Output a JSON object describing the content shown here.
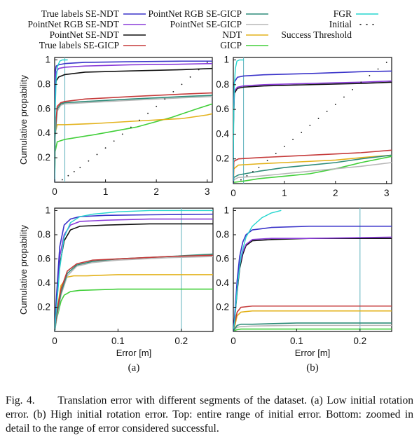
{
  "colors": {
    "true_labels_se_ndt": "#3a33c9",
    "pointnet_rgb_se_ndt": "#8a3bd8",
    "pointnet_se_ndt": "#111111",
    "true_labels_se_gicp": "#c53a3a",
    "pointnet_rgb_se_gicp": "#2f8c7a",
    "pointnet_se_gicp": "#b7b7b7",
    "ndt": "#e3b21b",
    "gicp": "#42cf3a",
    "fgr": "#26d6cf",
    "initial": "#111111",
    "success_threshold": "#6bb7c2"
  },
  "legend": {
    "entries": [
      {
        "key": "true_labels_se_ndt",
        "label": "True labels SE-NDT"
      },
      {
        "key": "pointnet_rgb_se_ndt",
        "label": "PointNet RGB SE-NDT"
      },
      {
        "key": "pointnet_se_ndt",
        "label": "PointNet SE-NDT"
      },
      {
        "key": "true_labels_se_gicp",
        "label": "True labels SE-GICP"
      },
      {
        "key": "pointnet_rgb_se_gicp",
        "label": "PointNet RGB SE-GICP"
      },
      {
        "key": "pointnet_se_gicp",
        "label": "PointNet SE-GICP"
      },
      {
        "key": "ndt",
        "label": "NDT"
      },
      {
        "key": "gicp",
        "label": "GICP"
      },
      {
        "key": "fgr",
        "label": "FGR"
      },
      {
        "key": "initial",
        "label": "Initial"
      },
      {
        "key": "success_threshold",
        "label": "Success Threshold"
      }
    ]
  },
  "caption": {
    "prefix": "Fig. 4.",
    "text": "Translation error with different segments of the dataset. (a) Low initial rotation error. (b) High initial rotation error. Top: entire range of initial error. Bottom: zoomed in detail to the range of error considered successful."
  },
  "chart_data": [
    {
      "id": "a_top",
      "type": "line",
      "panel_label": "",
      "ylabel": "Cumulative propability",
      "xlabel": "",
      "xlim": [
        0,
        3.1
      ],
      "ylim": [
        0,
        1.02
      ],
      "xticks": [
        0,
        1,
        2,
        3
      ],
      "yticks": [
        0.2,
        0.4,
        0.6,
        0.8,
        1
      ],
      "threshold": 0.2,
      "series": [
        {
          "key": "true_labels_se_ndt",
          "x": [
            0,
            0.005,
            0.03,
            0.08,
            0.2,
            0.6,
            1.5,
            2.5,
            3.1
          ],
          "y": [
            0,
            0.88,
            0.95,
            0.96,
            0.97,
            0.98,
            0.985,
            0.99,
            0.99
          ]
        },
        {
          "key": "pointnet_rgb_se_ndt",
          "x": [
            0,
            0.005,
            0.03,
            0.08,
            0.2,
            0.6,
            1.5,
            2.5,
            3.1
          ],
          "y": [
            0,
            0.8,
            0.9,
            0.93,
            0.94,
            0.95,
            0.96,
            0.965,
            0.97
          ]
        },
        {
          "key": "pointnet_se_ndt",
          "x": [
            0,
            0.005,
            0.03,
            0.08,
            0.2,
            0.6,
            1.5,
            2.5,
            3.1
          ],
          "y": [
            0,
            0.72,
            0.83,
            0.86,
            0.88,
            0.9,
            0.91,
            0.92,
            0.93
          ]
        },
        {
          "key": "true_labels_se_gicp",
          "x": [
            0,
            0.01,
            0.05,
            0.12,
            0.2,
            0.6,
            1.5,
            2.5,
            3.1
          ],
          "y": [
            0,
            0.42,
            0.62,
            0.65,
            0.66,
            0.68,
            0.7,
            0.72,
            0.73
          ]
        },
        {
          "key": "pointnet_rgb_se_gicp",
          "x": [
            0,
            0.01,
            0.05,
            0.12,
            0.2,
            0.6,
            1.5,
            2.5,
            3.1
          ],
          "y": [
            0,
            0.38,
            0.6,
            0.64,
            0.65,
            0.66,
            0.68,
            0.7,
            0.71
          ]
        },
        {
          "key": "pointnet_se_gicp",
          "x": [
            0,
            0.01,
            0.05,
            0.12,
            0.2,
            0.6,
            1.5,
            2.5,
            3.1
          ],
          "y": [
            0,
            0.36,
            0.58,
            0.63,
            0.64,
            0.65,
            0.67,
            0.69,
            0.7
          ]
        },
        {
          "key": "ndt",
          "x": [
            0,
            0.01,
            0.05,
            0.2,
            0.8,
            1.6,
            2.5,
            3.0,
            3.1
          ],
          "y": [
            0,
            0.4,
            0.47,
            0.47,
            0.48,
            0.5,
            0.52,
            0.55,
            0.56
          ]
        },
        {
          "key": "gicp",
          "x": [
            0,
            0.01,
            0.05,
            0.2,
            0.8,
            1.6,
            2.3,
            2.8,
            3.1
          ],
          "y": [
            0,
            0.25,
            0.33,
            0.35,
            0.39,
            0.45,
            0.53,
            0.6,
            0.64
          ]
        },
        {
          "key": "fgr",
          "x": [
            0,
            0.005,
            0.015,
            0.03,
            0.06,
            0.1,
            0.15,
            0.25
          ],
          "y": [
            0,
            0.3,
            0.65,
            0.85,
            0.95,
            0.99,
            1.0,
            1.0
          ]
        },
        {
          "key": "initial",
          "style": "dotted",
          "x": [
            0.15,
            0.5,
            1.0,
            1.5,
            2.0,
            2.5,
            3.0
          ],
          "y": [
            0.02,
            0.12,
            0.28,
            0.45,
            0.62,
            0.8,
            0.98
          ]
        }
      ]
    },
    {
      "id": "b_top",
      "type": "line",
      "panel_label": "",
      "ylabel": "",
      "xlabel": "",
      "xlim": [
        0,
        3.1
      ],
      "ylim": [
        0,
        1.02
      ],
      "xticks": [
        0,
        1,
        2,
        3
      ],
      "yticks": [
        0.2,
        0.4,
        0.6,
        0.8,
        1
      ],
      "threshold": 0.2,
      "series": [
        {
          "key": "true_labels_se_ndt",
          "x": [
            0,
            0.003,
            0.02,
            0.08,
            0.2,
            0.6,
            1.5,
            2.5,
            3.1
          ],
          "y": [
            0,
            0.55,
            0.82,
            0.86,
            0.87,
            0.88,
            0.89,
            0.905,
            0.91
          ]
        },
        {
          "key": "pointnet_rgb_se_ndt",
          "x": [
            0,
            0.003,
            0.02,
            0.08,
            0.2,
            0.6,
            1.5,
            2.5,
            3.1
          ],
          "y": [
            0,
            0.5,
            0.75,
            0.78,
            0.79,
            0.8,
            0.81,
            0.82,
            0.83
          ]
        },
        {
          "key": "pointnet_se_ndt",
          "x": [
            0,
            0.003,
            0.02,
            0.08,
            0.2,
            0.6,
            1.5,
            2.5,
            3.1
          ],
          "y": [
            0,
            0.48,
            0.73,
            0.77,
            0.78,
            0.79,
            0.8,
            0.81,
            0.82
          ]
        },
        {
          "key": "true_labels_se_gicp",
          "x": [
            0,
            0.01,
            0.1,
            0.5,
            1.0,
            1.5,
            2.0,
            2.5,
            3.1
          ],
          "y": [
            0,
            0.18,
            0.2,
            0.21,
            0.22,
            0.23,
            0.24,
            0.25,
            0.27
          ]
        },
        {
          "key": "pointnet_rgb_se_gicp",
          "x": [
            0,
            0.01,
            0.1,
            0.5,
            1.0,
            1.5,
            2.0,
            2.5,
            3.1
          ],
          "y": [
            0,
            0.05,
            0.07,
            0.1,
            0.13,
            0.15,
            0.17,
            0.2,
            0.23
          ]
        },
        {
          "key": "pointnet_se_gicp",
          "x": [
            0,
            0.01,
            0.1,
            0.5,
            1.0,
            1.5,
            2.0,
            2.5,
            3.1
          ],
          "y": [
            0,
            0.03,
            0.05,
            0.06,
            0.08,
            0.1,
            0.12,
            0.14,
            0.17
          ]
        },
        {
          "key": "ndt",
          "x": [
            0,
            0.01,
            0.1,
            0.5,
            1.0,
            1.5,
            2.0,
            2.5,
            3.1
          ],
          "y": [
            0,
            0.12,
            0.15,
            0.16,
            0.17,
            0.18,
            0.19,
            0.21,
            0.23
          ]
        },
        {
          "key": "gicp",
          "x": [
            0,
            0.01,
            0.2,
            0.5,
            1.0,
            1.5,
            2.0,
            2.5,
            3.1
          ],
          "y": [
            0,
            0.01,
            0.02,
            0.04,
            0.06,
            0.08,
            0.12,
            0.17,
            0.22
          ]
        },
        {
          "key": "fgr",
          "x": [
            0,
            0.003,
            0.01,
            0.02,
            0.04,
            0.07,
            0.12,
            0.2
          ],
          "y": [
            0,
            0.3,
            0.6,
            0.8,
            0.93,
            0.99,
            1.0,
            1.0
          ]
        },
        {
          "key": "initial",
          "style": "dotted",
          "x": [
            0.15,
            0.5,
            1.0,
            1.5,
            2.0,
            2.5,
            3.0
          ],
          "y": [
            0.03,
            0.13,
            0.3,
            0.47,
            0.64,
            0.82,
            0.98
          ]
        }
      ]
    },
    {
      "id": "a_bottom",
      "type": "line",
      "panel_label": "(a)",
      "ylabel": "Cumulative propability",
      "xlabel": "Error [m]",
      "xlim": [
        0,
        0.25
      ],
      "ylim": [
        0,
        1.02
      ],
      "xticks": [
        0,
        0.1,
        0.2
      ],
      "yticks": [
        0.2,
        0.4,
        0.6,
        0.8,
        1
      ],
      "threshold": 0.2,
      "series": [
        {
          "key": "true_labels_se_ndt",
          "x": [
            0,
            0.003,
            0.008,
            0.015,
            0.025,
            0.04,
            0.08,
            0.15,
            0.25
          ],
          "y": [
            0,
            0.3,
            0.7,
            0.88,
            0.93,
            0.95,
            0.96,
            0.965,
            0.97
          ]
        },
        {
          "key": "pointnet_rgb_se_ndt",
          "x": [
            0,
            0.003,
            0.008,
            0.015,
            0.025,
            0.04,
            0.08,
            0.15,
            0.25
          ],
          "y": [
            0,
            0.25,
            0.62,
            0.8,
            0.88,
            0.91,
            0.92,
            0.93,
            0.93
          ]
        },
        {
          "key": "pointnet_se_ndt",
          "x": [
            0,
            0.003,
            0.008,
            0.015,
            0.025,
            0.04,
            0.08,
            0.15,
            0.25
          ],
          "y": [
            0,
            0.22,
            0.55,
            0.75,
            0.84,
            0.87,
            0.88,
            0.89,
            0.89
          ]
        },
        {
          "key": "true_labels_se_gicp",
          "x": [
            0,
            0.003,
            0.01,
            0.02,
            0.035,
            0.06,
            0.1,
            0.18,
            0.25
          ],
          "y": [
            0,
            0.15,
            0.35,
            0.5,
            0.56,
            0.59,
            0.6,
            0.62,
            0.63
          ]
        },
        {
          "key": "pointnet_rgb_se_gicp",
          "x": [
            0,
            0.003,
            0.01,
            0.02,
            0.035,
            0.06,
            0.1,
            0.18,
            0.25
          ],
          "y": [
            0,
            0.12,
            0.32,
            0.48,
            0.55,
            0.58,
            0.6,
            0.62,
            0.64
          ]
        },
        {
          "key": "pointnet_se_gicp",
          "x": [
            0,
            0.003,
            0.01,
            0.02,
            0.035,
            0.06,
            0.1,
            0.18,
            0.25
          ],
          "y": [
            0,
            0.1,
            0.3,
            0.46,
            0.54,
            0.57,
            0.59,
            0.61,
            0.62
          ]
        },
        {
          "key": "ndt",
          "x": [
            0,
            0.003,
            0.01,
            0.02,
            0.03,
            0.05,
            0.1,
            0.18,
            0.25
          ],
          "y": [
            0,
            0.15,
            0.38,
            0.45,
            0.46,
            0.46,
            0.47,
            0.47,
            0.47
          ]
        },
        {
          "key": "gicp",
          "x": [
            0,
            0.003,
            0.01,
            0.015,
            0.025,
            0.04,
            0.1,
            0.18,
            0.25
          ],
          "y": [
            0,
            0.1,
            0.25,
            0.3,
            0.33,
            0.34,
            0.35,
            0.35,
            0.35
          ]
        },
        {
          "key": "fgr",
          "x": [
            0,
            0.003,
            0.008,
            0.015,
            0.025,
            0.04,
            0.06,
            0.1,
            0.15,
            0.25
          ],
          "y": [
            0,
            0.2,
            0.52,
            0.78,
            0.9,
            0.95,
            0.97,
            0.99,
            1.0,
            1.0
          ]
        }
      ]
    },
    {
      "id": "b_bottom",
      "type": "line",
      "panel_label": "(b)",
      "ylabel": "",
      "xlabel": "Error [m]",
      "xlim": [
        0,
        0.25
      ],
      "ylim": [
        0,
        1.02
      ],
      "xticks": [
        0,
        0.1,
        0.2
      ],
      "yticks": [
        0.2,
        0.4,
        0.6,
        0.8,
        1
      ],
      "threshold": 0.2,
      "series": [
        {
          "key": "true_labels_se_ndt",
          "x": [
            0,
            0.002,
            0.006,
            0.01,
            0.015,
            0.02,
            0.03,
            0.06,
            0.12,
            0.25
          ],
          "y": [
            0,
            0.12,
            0.42,
            0.62,
            0.74,
            0.8,
            0.84,
            0.86,
            0.87,
            0.87
          ]
        },
        {
          "key": "pointnet_rgb_se_ndt",
          "x": [
            0,
            0.002,
            0.006,
            0.01,
            0.015,
            0.02,
            0.03,
            0.06,
            0.12,
            0.25
          ],
          "y": [
            0,
            0.1,
            0.36,
            0.55,
            0.66,
            0.72,
            0.76,
            0.77,
            0.77,
            0.78
          ]
        },
        {
          "key": "pointnet_se_ndt",
          "x": [
            0,
            0.002,
            0.006,
            0.01,
            0.015,
            0.02,
            0.03,
            0.06,
            0.12,
            0.25
          ],
          "y": [
            0,
            0.09,
            0.33,
            0.52,
            0.64,
            0.71,
            0.75,
            0.76,
            0.77,
            0.77
          ]
        },
        {
          "key": "true_labels_se_gicp",
          "x": [
            0,
            0.002,
            0.006,
            0.012,
            0.03,
            0.1,
            0.25
          ],
          "y": [
            0,
            0.06,
            0.16,
            0.2,
            0.21,
            0.21,
            0.21
          ]
        },
        {
          "key": "pointnet_rgb_se_gicp",
          "x": [
            0,
            0.002,
            0.006,
            0.012,
            0.03,
            0.1,
            0.25
          ],
          "y": [
            0,
            0.02,
            0.05,
            0.06,
            0.06,
            0.07,
            0.07
          ]
        },
        {
          "key": "pointnet_se_gicp",
          "x": [
            0,
            0.002,
            0.006,
            0.012,
            0.03,
            0.1,
            0.25
          ],
          "y": [
            0,
            0.02,
            0.035,
            0.04,
            0.045,
            0.05,
            0.05
          ]
        },
        {
          "key": "ndt",
          "x": [
            0,
            0.002,
            0.006,
            0.012,
            0.03,
            0.1,
            0.25
          ],
          "y": [
            0,
            0.04,
            0.13,
            0.16,
            0.17,
            0.17,
            0.17
          ]
        },
        {
          "key": "gicp",
          "x": [
            0,
            0.002,
            0.006,
            0.012,
            0.03,
            0.1,
            0.25
          ],
          "y": [
            0,
            0.008,
            0.015,
            0.02,
            0.02,
            0.02,
            0.02
          ]
        },
        {
          "key": "fgr",
          "x": [
            0,
            0.002,
            0.006,
            0.012,
            0.02,
            0.03,
            0.045,
            0.06,
            0.075
          ],
          "y": [
            0,
            0.08,
            0.35,
            0.62,
            0.78,
            0.87,
            0.94,
            0.98,
            1.0
          ]
        }
      ]
    }
  ]
}
